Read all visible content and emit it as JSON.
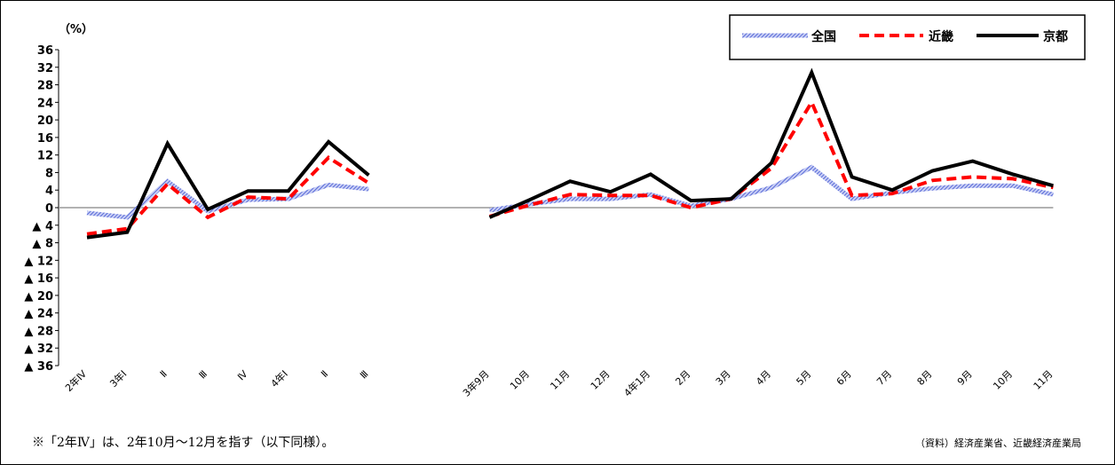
{
  "chart_data": {
    "type": "line",
    "y_unit": "（%）",
    "ylim": [
      -36,
      36
    ],
    "y_ticks": [
      {
        "value": 36,
        "label": "36"
      },
      {
        "value": 32,
        "label": "32"
      },
      {
        "value": 28,
        "label": "28"
      },
      {
        "value": 24,
        "label": "24"
      },
      {
        "value": 20,
        "label": "20"
      },
      {
        "value": 16,
        "label": "16"
      },
      {
        "value": 12,
        "label": "12"
      },
      {
        "value": 8,
        "label": "8"
      },
      {
        "value": 4,
        "label": "4"
      },
      {
        "value": 0,
        "label": "0"
      },
      {
        "value": -4,
        "label": "▲ 4"
      },
      {
        "value": -8,
        "label": "▲ 8"
      },
      {
        "value": -12,
        "label": "▲ 12"
      },
      {
        "value": -16,
        "label": "▲ 16"
      },
      {
        "value": -20,
        "label": "▲ 20"
      },
      {
        "value": -24,
        "label": "▲ 24"
      },
      {
        "value": -28,
        "label": "▲ 28"
      },
      {
        "value": -32,
        "label": "▲ 32"
      },
      {
        "value": -36,
        "label": "▲ 36"
      }
    ],
    "categories": [
      "2年Ⅳ",
      "3年Ⅰ",
      "Ⅱ",
      "Ⅲ",
      "Ⅳ",
      "4年Ⅰ",
      "Ⅱ",
      "Ⅲ",
      "",
      "",
      "3年9月",
      "10月",
      "11月",
      "12月",
      "4年1月",
      "2月",
      "3月",
      "4月",
      "5月",
      "6月",
      "7月",
      "8月",
      "9月",
      "10月",
      "11月"
    ],
    "series": [
      {
        "name": "全国",
        "color": "#5a6fd8",
        "style": "hatched",
        "values": [
          -1.2,
          -2.2,
          6.0,
          -0.8,
          1.8,
          2.0,
          5.2,
          4.2,
          null,
          null,
          -0.6,
          0.8,
          2.0,
          2.0,
          3.0,
          0.4,
          2.0,
          4.6,
          9.2,
          2.0,
          3.4,
          4.4,
          5.0,
          5.0,
          3.0
        ]
      },
      {
        "name": "近畿",
        "color": "#ff0000",
        "style": "dashed",
        "values": [
          -6.0,
          -4.8,
          5.4,
          -2.2,
          2.4,
          2.0,
          11.4,
          5.6,
          null,
          null,
          -2.0,
          0.6,
          3.0,
          2.8,
          2.8,
          0.0,
          2.0,
          9.0,
          24.0,
          2.8,
          3.2,
          6.2,
          7.0,
          6.6,
          4.6
        ]
      },
      {
        "name": "京都",
        "color": "#000000",
        "style": "solid",
        "values": [
          -6.8,
          -5.6,
          14.6,
          -0.4,
          3.8,
          3.8,
          15.0,
          7.4,
          null,
          null,
          -2.2,
          1.8,
          6.0,
          3.6,
          7.6,
          1.6,
          2.0,
          10.2,
          30.8,
          7.0,
          4.0,
          8.4,
          10.6,
          7.6,
          5.0
        ]
      }
    ],
    "grid": false,
    "legend_position": "top-right"
  },
  "notes": {
    "footnote": "※「2年Ⅳ」は、2年10月～12月を指す（以下同様）。",
    "source": "（資料）経済産業省、近畿経済産業局"
  }
}
